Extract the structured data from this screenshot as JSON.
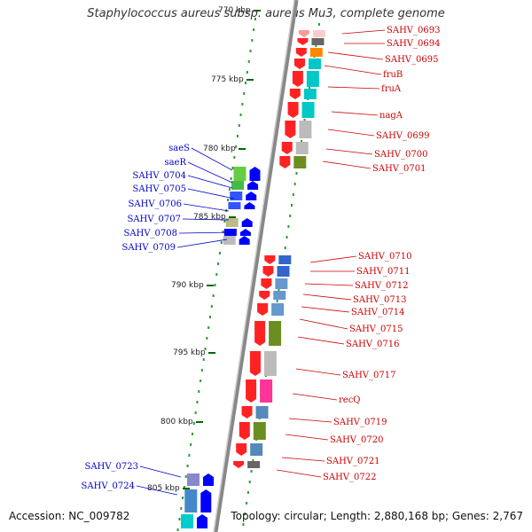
{
  "title": "Staphylococcus aureus subsp. aureus Mu3, complete genome",
  "footer": {
    "accession": "Accession: NC_009782",
    "info": "Topology: circular; Length: 2,880,168 bp; Genes: 2,767"
  },
  "colors": {
    "forward_label": "#0000cc",
    "reverse_label": "#cc0000",
    "forward_arrow": "#0000ff",
    "reverse_arrow": "#ff0000",
    "backbone": "#777777",
    "ticks": "#006600"
  },
  "kbp_ticks": [
    {
      "label": "770 kbp"
    },
    {
      "label": "775 kbp"
    },
    {
      "label": "780 kbp"
    },
    {
      "label": "785 kbp"
    },
    {
      "label": "790 kbp"
    },
    {
      "label": "795 kbp"
    },
    {
      "label": "800 kbp"
    },
    {
      "label": "805 kbp"
    }
  ],
  "forward_genes": [
    {
      "name": "saeS"
    },
    {
      "name": "saeR"
    },
    {
      "name": "SAHV_0704"
    },
    {
      "name": "SAHV_0705"
    },
    {
      "name": "SAHV_0706"
    },
    {
      "name": "SAHV_0707"
    },
    {
      "name": "SAHV_0708"
    },
    {
      "name": "SAHV_0709"
    },
    {
      "name": "SAHV_0723"
    },
    {
      "name": "SAHV_0724"
    }
  ],
  "reverse_genes": [
    {
      "name": "SAHV_0693"
    },
    {
      "name": "SAHV_0694"
    },
    {
      "name": "SAHV_0695"
    },
    {
      "name": "fruB"
    },
    {
      "name": "fruA"
    },
    {
      "name": "nagA"
    },
    {
      "name": "SAHV_0699"
    },
    {
      "name": "SAHV_0700"
    },
    {
      "name": "SAHV_0701"
    },
    {
      "name": "SAHV_0710"
    },
    {
      "name": "SAHV_0711"
    },
    {
      "name": "SAHV_0712"
    },
    {
      "name": "SAHV_0713"
    },
    {
      "name": "SAHV_0714"
    },
    {
      "name": "SAHV_0715"
    },
    {
      "name": "SAHV_0716"
    },
    {
      "name": "SAHV_0717"
    },
    {
      "name": "recQ"
    },
    {
      "name": "SAHV_0719"
    },
    {
      "name": "SAHV_0720"
    },
    {
      "name": "SAHV_0721"
    },
    {
      "name": "SAHV_0722"
    }
  ]
}
